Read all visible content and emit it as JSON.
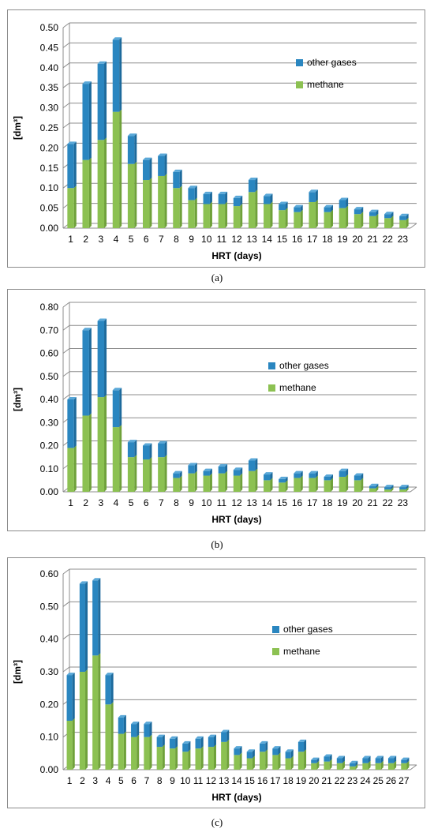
{
  "colors": {
    "other": "#2a86c0",
    "other_top": "#5aa8d8",
    "methane": "#8cc152",
    "methane_top": "#b5db82",
    "grid": "#8c8c8c"
  },
  "chart_data": [
    {
      "type": "bar",
      "stacked": true,
      "caption": "(a)",
      "xlabel": "HRT (days)",
      "ylabel": "[dm³]",
      "ylim": [
        0,
        0.5
      ],
      "ytick_step": 0.05,
      "ytick_labels": [
        "0.00",
        "0.05",
        "0.10",
        "0.15",
        "0.20",
        "0.25",
        "0.30",
        "0.35",
        "0.40",
        "0.45",
        "0.50"
      ],
      "legend_position": "right",
      "categories": [
        "1",
        "2",
        "3",
        "4",
        "5",
        "6",
        "7",
        "8",
        "9",
        "10",
        "11",
        "12",
        "13",
        "14",
        "15",
        "16",
        "17",
        "18",
        "19",
        "20",
        "21",
        "22",
        "23"
      ],
      "series": [
        {
          "name": "methane",
          "values": [
            0.1,
            0.17,
            0.22,
            0.29,
            0.16,
            0.12,
            0.13,
            0.1,
            0.07,
            0.06,
            0.06,
            0.055,
            0.09,
            0.06,
            0.045,
            0.04,
            0.065,
            0.04,
            0.05,
            0.035,
            0.03,
            0.025,
            0.02
          ]
        },
        {
          "name": "other gases",
          "values": [
            0.11,
            0.19,
            0.19,
            0.18,
            0.07,
            0.05,
            0.05,
            0.04,
            0.03,
            0.025,
            0.025,
            0.02,
            0.03,
            0.02,
            0.015,
            0.012,
            0.025,
            0.012,
            0.02,
            0.012,
            0.01,
            0.01,
            0.01
          ]
        }
      ]
    },
    {
      "type": "bar",
      "stacked": true,
      "caption": "(b)",
      "xlabel": "HRT (days)",
      "ylabel": "[dm³]",
      "ylim": [
        0,
        0.8
      ],
      "ytick_step": 0.1,
      "ytick_labels": [
        "0.00",
        "0.10",
        "0.20",
        "0.30",
        "0.40",
        "0.50",
        "0.60",
        "0.70",
        "0.80"
      ],
      "legend_position": "right",
      "categories": [
        "1",
        "2",
        "3",
        "4",
        "5",
        "6",
        "7",
        "8",
        "9",
        "10",
        "11",
        "12",
        "13",
        "14",
        "15",
        "16",
        "17",
        "18",
        "19",
        "20",
        "21",
        "22",
        "23"
      ],
      "series": [
        {
          "name": "methane",
          "values": [
            0.19,
            0.33,
            0.41,
            0.28,
            0.15,
            0.14,
            0.15,
            0.06,
            0.08,
            0.07,
            0.08,
            0.07,
            0.09,
            0.05,
            0.04,
            0.06,
            0.06,
            0.05,
            0.065,
            0.05,
            0.015,
            0.01,
            0.01
          ]
        },
        {
          "name": "other gases",
          "values": [
            0.21,
            0.37,
            0.33,
            0.16,
            0.065,
            0.06,
            0.06,
            0.02,
            0.035,
            0.02,
            0.03,
            0.025,
            0.045,
            0.025,
            0.015,
            0.02,
            0.02,
            0.015,
            0.025,
            0.02,
            0.01,
            0.01,
            0.01
          ]
        }
      ]
    },
    {
      "type": "bar",
      "stacked": true,
      "caption": "(c)",
      "xlabel": "HRT (days)",
      "ylabel": "[dm³]",
      "ylim": [
        0,
        0.6
      ],
      "ytick_step": 0.1,
      "ytick_labels": [
        "0.00",
        "0.10",
        "0.20",
        "0.30",
        "0.40",
        "0.50",
        "0.60"
      ],
      "legend_position": "right",
      "categories": [
        "1",
        "2",
        "3",
        "4",
        "5",
        "6",
        "7",
        "8",
        "9",
        "10",
        "11",
        "12",
        "13",
        "14",
        "15",
        "16",
        "17",
        "18",
        "19",
        "20",
        "21",
        "22",
        "23",
        "24",
        "25",
        "26",
        "27"
      ],
      "series": [
        {
          "name": "methane",
          "values": [
            0.15,
            0.3,
            0.35,
            0.2,
            0.11,
            0.1,
            0.1,
            0.07,
            0.065,
            0.055,
            0.065,
            0.07,
            0.085,
            0.045,
            0.035,
            0.055,
            0.045,
            0.035,
            0.055,
            0.02,
            0.025,
            0.02,
            0.01,
            0.02,
            0.02,
            0.02,
            0.02
          ]
        },
        {
          "name": "other gases",
          "values": [
            0.14,
            0.27,
            0.23,
            0.09,
            0.05,
            0.04,
            0.04,
            0.03,
            0.03,
            0.025,
            0.03,
            0.03,
            0.03,
            0.02,
            0.02,
            0.025,
            0.02,
            0.02,
            0.03,
            0.01,
            0.015,
            0.015,
            0.01,
            0.015,
            0.015,
            0.015,
            0.01
          ]
        }
      ]
    }
  ]
}
